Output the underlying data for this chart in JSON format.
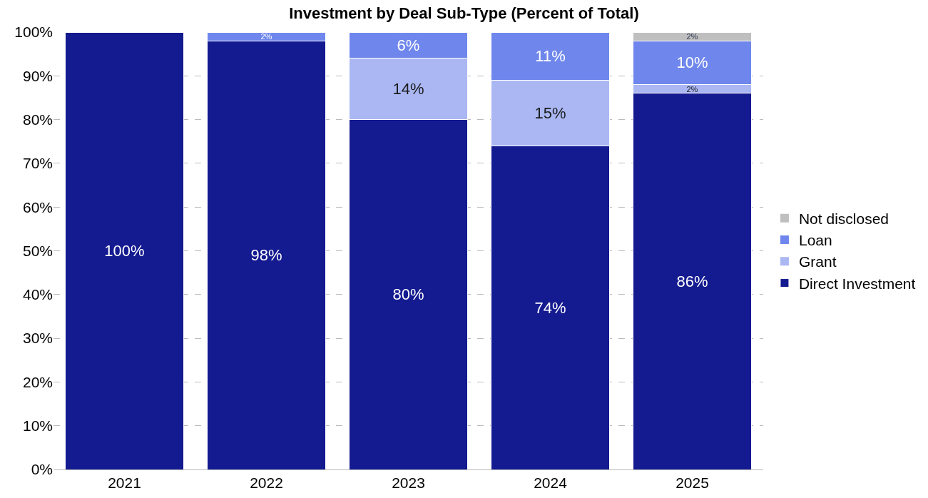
{
  "chart_data": {
    "type": "bar",
    "title": "Investment by Deal Sub-Type (Percent of Total)",
    "categories": [
      "2021",
      "2022",
      "2023",
      "2024",
      "2025"
    ],
    "stacked": true,
    "series": [
      {
        "name": "Direct Investment",
        "color": "#141a8f",
        "values": [
          100,
          98,
          80,
          74,
          86
        ],
        "value_labels": [
          "100%",
          "98%",
          "80%",
          "74%",
          "86%"
        ]
      },
      {
        "name": "Grant",
        "color": "#aab7f3",
        "values": [
          0,
          0,
          14,
          15,
          2
        ],
        "value_labels": [
          null,
          null,
          "14%",
          "15%",
          "2%"
        ]
      },
      {
        "name": "Loan",
        "color": "#6f87ec",
        "values": [
          0,
          2,
          6,
          11,
          10
        ],
        "value_labels": [
          null,
          "2%",
          "6%",
          "11%",
          "10%"
        ]
      },
      {
        "name": "Not disclosed",
        "color": "#bfbfbf",
        "values": [
          0,
          0,
          0,
          0,
          2
        ],
        "value_labels": [
          null,
          null,
          null,
          null,
          "2%"
        ]
      }
    ],
    "ylim": [
      0,
      100
    ],
    "yticks": [
      {
        "value": 0,
        "label": "0%"
      },
      {
        "value": 10,
        "label": "10%"
      },
      {
        "value": 20,
        "label": "20%"
      },
      {
        "value": 30,
        "label": "30%"
      },
      {
        "value": 40,
        "label": "40%"
      },
      {
        "value": 50,
        "label": "50%"
      },
      {
        "value": 60,
        "label": "60%"
      },
      {
        "value": 70,
        "label": "70%"
      },
      {
        "value": 80,
        "label": "80%"
      },
      {
        "value": 90,
        "label": "90%"
      },
      {
        "value": 100,
        "label": "100%"
      }
    ],
    "grid": "y",
    "legend": "right"
  }
}
